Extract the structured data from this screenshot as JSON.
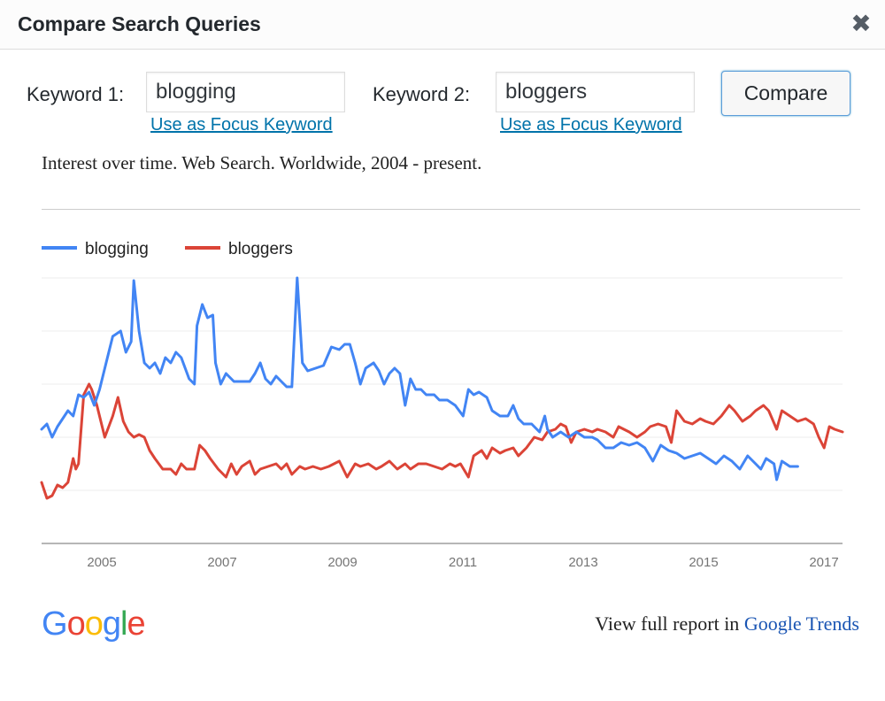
{
  "dialog": {
    "title": "Compare Search Queries",
    "close_glyph": "✖"
  },
  "form": {
    "keyword1_label": "Keyword 1:",
    "keyword1_value": "blogging",
    "keyword2_label": "Keyword 2:",
    "keyword2_value": "bloggers",
    "focus_link_label": "Use as Focus Keyword",
    "compare_label": "Compare"
  },
  "interest_text": "Interest over time. Web Search. Worldwide, 2004 - present.",
  "footer": {
    "logo_letters": [
      "G",
      "o",
      "o",
      "g",
      "l",
      "e"
    ],
    "logo_colors": [
      "#4285f4",
      "#ea4335",
      "#fbbc05",
      "#4285f4",
      "#34a853",
      "#ea4335"
    ],
    "view_text": "View full report in",
    "link_text": "Google Trends"
  },
  "chart_data": {
    "type": "line",
    "ylim": [
      0,
      100
    ],
    "grid": true,
    "legend_position": "top-left",
    "x_ticks": [
      "2005",
      "2007",
      "2009",
      "2011",
      "2013",
      "2015",
      "2017"
    ],
    "series": [
      {
        "name": "blogging",
        "color": "#4285f4",
        "points": [
          [
            2004.0,
            43
          ],
          [
            2004.1,
            45
          ],
          [
            2004.2,
            40
          ],
          [
            2004.3,
            44
          ],
          [
            2004.5,
            50
          ],
          [
            2004.6,
            48
          ],
          [
            2004.7,
            56
          ],
          [
            2004.8,
            55
          ],
          [
            2004.9,
            57
          ],
          [
            2005.0,
            52
          ],
          [
            2005.1,
            58
          ],
          [
            2005.25,
            70
          ],
          [
            2005.35,
            78
          ],
          [
            2005.5,
            80
          ],
          [
            2005.6,
            72
          ],
          [
            2005.7,
            76
          ],
          [
            2005.75,
            99
          ],
          [
            2005.85,
            80
          ],
          [
            2005.95,
            68
          ],
          [
            2006.05,
            66
          ],
          [
            2006.15,
            68
          ],
          [
            2006.25,
            64
          ],
          [
            2006.35,
            70
          ],
          [
            2006.45,
            68
          ],
          [
            2006.55,
            72
          ],
          [
            2006.65,
            70
          ],
          [
            2006.8,
            62
          ],
          [
            2006.9,
            60
          ],
          [
            2006.95,
            82
          ],
          [
            2007.05,
            90
          ],
          [
            2007.15,
            85
          ],
          [
            2007.25,
            86
          ],
          [
            2007.3,
            68
          ],
          [
            2007.4,
            60
          ],
          [
            2007.5,
            64
          ],
          [
            2007.65,
            61
          ],
          [
            2007.8,
            61
          ],
          [
            2007.95,
            61
          ],
          [
            2008.05,
            64
          ],
          [
            2008.15,
            68
          ],
          [
            2008.25,
            62
          ],
          [
            2008.35,
            60
          ],
          [
            2008.45,
            63
          ],
          [
            2008.55,
            61
          ],
          [
            2008.65,
            59
          ],
          [
            2008.75,
            59
          ],
          [
            2008.85,
            100
          ],
          [
            2008.95,
            68
          ],
          [
            2009.05,
            65
          ],
          [
            2009.2,
            66
          ],
          [
            2009.35,
            67
          ],
          [
            2009.5,
            74
          ],
          [
            2009.65,
            73
          ],
          [
            2009.75,
            75
          ],
          [
            2009.85,
            75
          ],
          [
            2009.95,
            68
          ],
          [
            2010.05,
            60
          ],
          [
            2010.15,
            66
          ],
          [
            2010.3,
            68
          ],
          [
            2010.4,
            65
          ],
          [
            2010.5,
            60
          ],
          [
            2010.6,
            64
          ],
          [
            2010.7,
            66
          ],
          [
            2010.8,
            64
          ],
          [
            2010.9,
            52
          ],
          [
            2011.0,
            62
          ],
          [
            2011.1,
            58
          ],
          [
            2011.2,
            58
          ],
          [
            2011.3,
            56
          ],
          [
            2011.45,
            56
          ],
          [
            2011.55,
            54
          ],
          [
            2011.7,
            54
          ],
          [
            2011.85,
            52
          ],
          [
            2012.0,
            48
          ],
          [
            2012.1,
            58
          ],
          [
            2012.2,
            56
          ],
          [
            2012.3,
            57
          ],
          [
            2012.45,
            55
          ],
          [
            2012.55,
            50
          ],
          [
            2012.7,
            48
          ],
          [
            2012.85,
            48
          ],
          [
            2012.95,
            52
          ],
          [
            2013.05,
            47
          ],
          [
            2013.15,
            45
          ],
          [
            2013.3,
            45
          ],
          [
            2013.45,
            42
          ],
          [
            2013.55,
            48
          ],
          [
            2013.6,
            43
          ],
          [
            2013.7,
            40
          ],
          [
            2013.85,
            42
          ],
          [
            2014.0,
            40
          ],
          [
            2014.15,
            42
          ],
          [
            2014.3,
            40
          ],
          [
            2014.45,
            40
          ],
          [
            2014.55,
            39
          ],
          [
            2014.7,
            36
          ],
          [
            2014.85,
            36
          ],
          [
            2015.0,
            38
          ],
          [
            2015.15,
            37
          ],
          [
            2015.3,
            38
          ],
          [
            2015.45,
            36
          ],
          [
            2015.6,
            31
          ],
          [
            2015.75,
            37
          ],
          [
            2015.9,
            35
          ],
          [
            2016.05,
            34
          ],
          [
            2016.2,
            32
          ],
          [
            2016.35,
            33
          ],
          [
            2016.5,
            34
          ],
          [
            2016.65,
            32
          ],
          [
            2016.8,
            30
          ],
          [
            2016.95,
            33
          ],
          [
            2017.1,
            31
          ],
          [
            2017.25,
            28
          ],
          [
            2017.4,
            33
          ],
          [
            2017.55,
            30
          ],
          [
            2017.65,
            28
          ],
          [
            2017.75,
            32
          ],
          [
            2017.9,
            30
          ],
          [
            2017.95,
            24
          ],
          [
            2018.05,
            31
          ],
          [
            2018.2,
            29
          ],
          [
            2018.35,
            29
          ]
        ]
      },
      {
        "name": "bloggers",
        "color": "#db4437",
        "points": [
          [
            2004.0,
            23
          ],
          [
            2004.1,
            17
          ],
          [
            2004.2,
            18
          ],
          [
            2004.3,
            22
          ],
          [
            2004.4,
            21
          ],
          [
            2004.5,
            23
          ],
          [
            2004.6,
            32
          ],
          [
            2004.65,
            28
          ],
          [
            2004.7,
            30
          ],
          [
            2004.8,
            56
          ],
          [
            2004.9,
            60
          ],
          [
            2004.95,
            58
          ],
          [
            2005.05,
            52
          ],
          [
            2005.2,
            40
          ],
          [
            2005.35,
            48
          ],
          [
            2005.45,
            55
          ],
          [
            2005.55,
            46
          ],
          [
            2005.65,
            42
          ],
          [
            2005.75,
            40
          ],
          [
            2005.85,
            41
          ],
          [
            2005.95,
            40
          ],
          [
            2006.05,
            35
          ],
          [
            2006.15,
            32
          ],
          [
            2006.3,
            28
          ],
          [
            2006.45,
            28
          ],
          [
            2006.55,
            26
          ],
          [
            2006.65,
            30
          ],
          [
            2006.75,
            28
          ],
          [
            2006.9,
            28
          ],
          [
            2007.0,
            37
          ],
          [
            2007.1,
            35
          ],
          [
            2007.2,
            32
          ],
          [
            2007.35,
            28
          ],
          [
            2007.5,
            25
          ],
          [
            2007.6,
            30
          ],
          [
            2007.7,
            26
          ],
          [
            2007.8,
            29
          ],
          [
            2007.95,
            31
          ],
          [
            2008.05,
            26
          ],
          [
            2008.15,
            28
          ],
          [
            2008.3,
            29
          ],
          [
            2008.45,
            30
          ],
          [
            2008.55,
            28
          ],
          [
            2008.65,
            30
          ],
          [
            2008.75,
            26
          ],
          [
            2008.9,
            29
          ],
          [
            2009.0,
            28
          ],
          [
            2009.15,
            29
          ],
          [
            2009.3,
            28
          ],
          [
            2009.45,
            29
          ],
          [
            2009.55,
            30
          ],
          [
            2009.65,
            31
          ],
          [
            2009.8,
            25
          ],
          [
            2009.95,
            30
          ],
          [
            2010.05,
            29
          ],
          [
            2010.2,
            30
          ],
          [
            2010.35,
            28
          ],
          [
            2010.45,
            29
          ],
          [
            2010.6,
            31
          ],
          [
            2010.75,
            28
          ],
          [
            2010.9,
            30
          ],
          [
            2011.0,
            28
          ],
          [
            2011.15,
            30
          ],
          [
            2011.3,
            30
          ],
          [
            2011.45,
            29
          ],
          [
            2011.6,
            28
          ],
          [
            2011.75,
            30
          ],
          [
            2011.85,
            29
          ],
          [
            2011.95,
            30
          ],
          [
            2012.1,
            25
          ],
          [
            2012.2,
            33
          ],
          [
            2012.35,
            35
          ],
          [
            2012.45,
            32
          ],
          [
            2012.55,
            36
          ],
          [
            2012.7,
            34
          ],
          [
            2012.8,
            35
          ],
          [
            2012.95,
            36
          ],
          [
            2013.05,
            33
          ],
          [
            2013.2,
            36
          ],
          [
            2013.35,
            40
          ],
          [
            2013.5,
            39
          ],
          [
            2013.6,
            42
          ],
          [
            2013.75,
            43
          ],
          [
            2013.85,
            45
          ],
          [
            2013.95,
            44
          ],
          [
            2014.05,
            38
          ],
          [
            2014.15,
            42
          ],
          [
            2014.3,
            43
          ],
          [
            2014.45,
            42
          ],
          [
            2014.55,
            43
          ],
          [
            2014.7,
            42
          ],
          [
            2014.85,
            40
          ],
          [
            2014.95,
            44
          ],
          [
            2015.05,
            43
          ],
          [
            2015.15,
            42
          ],
          [
            2015.3,
            40
          ],
          [
            2015.45,
            42
          ],
          [
            2015.55,
            44
          ],
          [
            2015.7,
            45
          ],
          [
            2015.85,
            44
          ],
          [
            2015.95,
            38
          ],
          [
            2016.05,
            50
          ],
          [
            2016.2,
            46
          ],
          [
            2016.35,
            45
          ],
          [
            2016.5,
            47
          ],
          [
            2016.6,
            46
          ],
          [
            2016.75,
            45
          ],
          [
            2016.9,
            48
          ],
          [
            2017.05,
            52
          ],
          [
            2017.15,
            50
          ],
          [
            2017.3,
            46
          ],
          [
            2017.45,
            48
          ],
          [
            2017.55,
            50
          ],
          [
            2017.7,
            52
          ],
          [
            2017.8,
            50
          ],
          [
            2017.95,
            43
          ],
          [
            2018.05,
            50
          ],
          [
            2018.2,
            48
          ],
          [
            2018.35,
            46
          ],
          [
            2018.5,
            47
          ],
          [
            2018.65,
            45
          ],
          [
            2018.75,
            40
          ],
          [
            2018.85,
            36
          ],
          [
            2018.95,
            44
          ],
          [
            2019.05,
            43
          ],
          [
            2019.2,
            42
          ]
        ]
      }
    ]
  }
}
